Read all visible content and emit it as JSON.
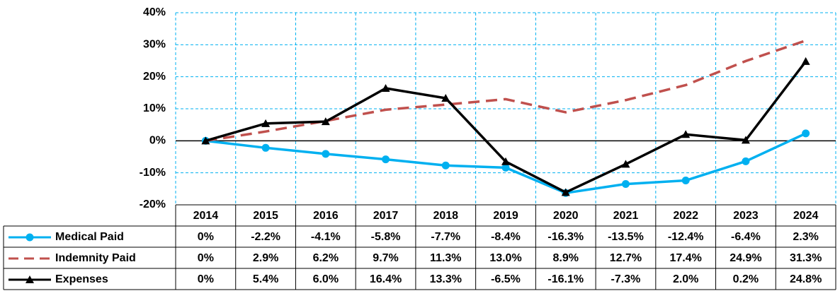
{
  "chart_data": {
    "type": "line",
    "categories": [
      "2014",
      "2015",
      "2016",
      "2017",
      "2018",
      "2019",
      "2020",
      "2021",
      "2022",
      "2023",
      "2024"
    ],
    "series": [
      {
        "name": "Medical Paid",
        "color": "#00b0f0",
        "marker": "circle",
        "dash": false,
        "values": [
          0,
          -2.2,
          -4.1,
          -5.8,
          -7.7,
          -8.4,
          -16.3,
          -13.5,
          -12.4,
          -6.4,
          2.3
        ],
        "value_labels": [
          "0%",
          "-2.2%",
          "-4.1%",
          "-5.8%",
          "-7.7%",
          "-8.4%",
          "-16.3%",
          "-13.5%",
          "-12.4%",
          "-6.4%",
          "2.3%"
        ]
      },
      {
        "name": "Indemnity Paid",
        "color": "#c0504d",
        "marker": "none",
        "dash": true,
        "values": [
          0,
          2.9,
          6.2,
          9.7,
          11.3,
          13.0,
          8.9,
          12.7,
          17.4,
          24.9,
          31.3
        ],
        "value_labels": [
          "0%",
          "2.9%",
          "6.2%",
          "9.7%",
          "11.3%",
          "13.0%",
          "8.9%",
          "12.7%",
          "17.4%",
          "24.9%",
          "31.3%"
        ]
      },
      {
        "name": "Expenses",
        "color": "#000000",
        "marker": "triangle",
        "dash": false,
        "values": [
          0,
          5.4,
          6.0,
          16.4,
          13.3,
          -6.5,
          -16.1,
          -7.3,
          2.0,
          0.2,
          24.8
        ],
        "value_labels": [
          "0%",
          "5.4%",
          "6.0%",
          "16.4%",
          "13.3%",
          "-6.5%",
          "-16.1%",
          "-7.3%",
          "2.0%",
          "0.2%",
          "24.8%"
        ]
      }
    ],
    "ylim": [
      -20,
      40
    ],
    "yticks": [
      {
        "value": -20,
        "label": "-20%"
      },
      {
        "value": -10,
        "label": "-10%"
      },
      {
        "value": 0,
        "label": "0%"
      },
      {
        "value": 10,
        "label": "10%"
      },
      {
        "value": 20,
        "label": "20%"
      },
      {
        "value": 30,
        "label": "30%"
      },
      {
        "value": 40,
        "label": "40%"
      }
    ],
    "grid": true
  }
}
